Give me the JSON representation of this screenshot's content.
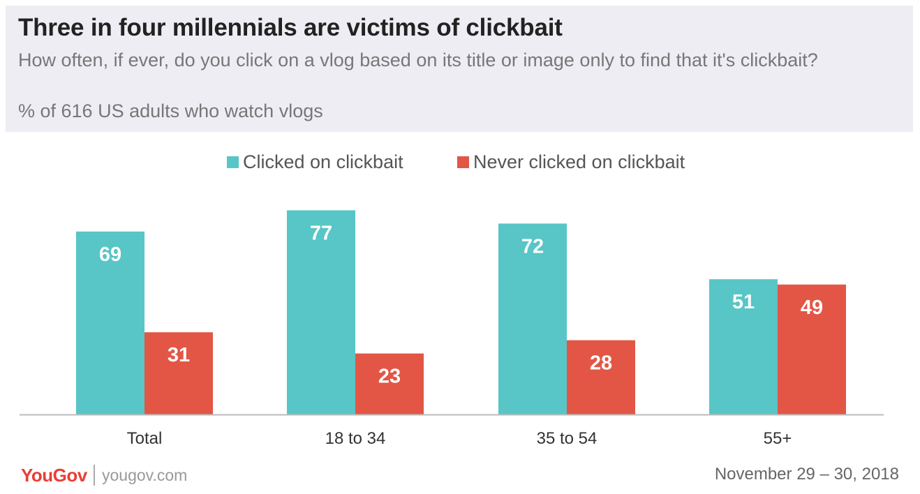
{
  "header": {
    "title": "Three in four millennials are victims of clickbait",
    "subtitle": "How often, if ever, do you click on a vlog based on its title or image only to find that it's clickbait?",
    "note": "% of 616 US adults who watch vlogs"
  },
  "colors": {
    "clicked": "#58c5c6",
    "never": "#e35645",
    "header_bg": "#efedf4"
  },
  "chart_data": {
    "type": "bar",
    "categories": [
      "Total",
      "18 to 34",
      "35 to 54",
      "55+"
    ],
    "series": [
      {
        "name": "Clicked on clickbait",
        "values": [
          69,
          77,
          72,
          51
        ]
      },
      {
        "name": "Never clicked on clickbait",
        "values": [
          31,
          23,
          28,
          49
        ]
      }
    ],
    "ylim": [
      0,
      100
    ],
    "legend_position": "top-center",
    "grid": false,
    "data_labels": true
  },
  "footer": {
    "logo": "YouGov",
    "site": "yougov.com",
    "date": "November 29 – 30, 2018"
  }
}
